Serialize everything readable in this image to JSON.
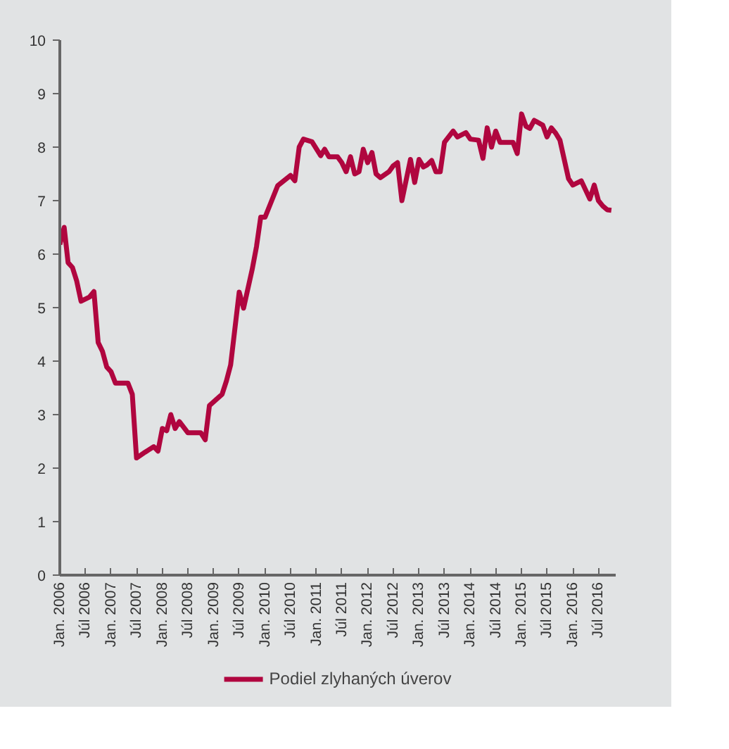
{
  "chart_data": {
    "type": "line",
    "x": [
      "2006-01",
      "2006-02",
      "2006-03",
      "2006-04",
      "2006-05",
      "2006-06",
      "2006-08",
      "2006-09",
      "2006-10",
      "2006-11",
      "2006-12",
      "2007-01",
      "2007-02",
      "2007-05",
      "2007-06",
      "2007-07",
      "2007-09",
      "2007-10",
      "2007-11",
      "2007-12",
      "2008-01",
      "2008-02",
      "2008-03",
      "2008-04",
      "2008-05",
      "2008-07",
      "2008-10",
      "2008-11",
      "2008-12",
      "2009-03",
      "2009-04",
      "2009-05",
      "2009-07",
      "2009-08",
      "2009-10",
      "2009-11",
      "2009-12",
      "2010-01",
      "2010-04",
      "2010-07",
      "2010-08",
      "2010-09",
      "2010-10",
      "2010-12",
      "2011-02",
      "2011-03",
      "2011-04",
      "2011-06",
      "2011-07",
      "2011-08",
      "2011-09",
      "2011-10",
      "2011-11",
      "2011-12",
      "2012-01",
      "2012-02",
      "2012-03",
      "2012-04",
      "2012-06",
      "2012-07",
      "2012-08",
      "2012-09",
      "2012-11",
      "2012-12",
      "2013-01",
      "2013-02",
      "2013-03",
      "2013-04",
      "2013-05",
      "2013-06",
      "2013-07",
      "2013-09",
      "2013-10",
      "2013-12",
      "2014-01",
      "2014-03",
      "2014-04",
      "2014-05",
      "2014-06",
      "2014-07",
      "2014-08",
      "2014-11",
      "2014-12",
      "2015-01",
      "2015-02",
      "2015-03",
      "2015-04",
      "2015-06",
      "2015-07",
      "2015-08",
      "2015-09",
      "2015-10",
      "2015-12",
      "2016-01",
      "2016-03",
      "2016-05",
      "2016-06",
      "2016-07",
      "2016-08",
      "2016-09",
      "2016-10"
    ],
    "series": [
      {
        "name": "Podiel zlyhaných úverov",
        "color": "#b0063f",
        "values": [
          6.18,
          6.5,
          5.84,
          5.75,
          5.5,
          5.12,
          5.2,
          5.3,
          4.35,
          4.18,
          3.89,
          3.8,
          3.59,
          3.59,
          3.38,
          2.19,
          2.3,
          2.35,
          2.4,
          2.32,
          2.74,
          2.7,
          3.0,
          2.74,
          2.87,
          2.66,
          2.66,
          2.53,
          3.17,
          3.38,
          3.63,
          3.93,
          5.29,
          4.99,
          5.71,
          6.14,
          6.69,
          6.69,
          7.28,
          7.47,
          7.37,
          8.0,
          8.15,
          8.1,
          7.84,
          7.96,
          7.82,
          7.82,
          7.71,
          7.54,
          7.82,
          7.5,
          7.54,
          7.96,
          7.71,
          7.9,
          7.5,
          7.43,
          7.54,
          7.65,
          7.71,
          7.0,
          7.77,
          7.34,
          7.77,
          7.63,
          7.67,
          7.75,
          7.54,
          7.54,
          8.09,
          8.3,
          8.19,
          8.27,
          8.15,
          8.13,
          7.79,
          8.36,
          8.0,
          8.3,
          8.09,
          8.09,
          7.88,
          8.62,
          8.39,
          8.35,
          8.5,
          8.41,
          8.19,
          8.36,
          8.26,
          8.13,
          7.41,
          7.29,
          7.37,
          7.03,
          7.29,
          7.0,
          6.9,
          6.83,
          6.82
        ]
      }
    ],
    "xlim": [
      "2006-01",
      "2016-11"
    ],
    "xticks": [
      {
        "value": "2006-01",
        "label": "Jan. 2006"
      },
      {
        "value": "2006-07",
        "label": "Júl 2006"
      },
      {
        "value": "2007-01",
        "label": "Jan. 2007"
      },
      {
        "value": "2007-07",
        "label": "Júl 2007"
      },
      {
        "value": "2008-01",
        "label": "Jan. 2008"
      },
      {
        "value": "2008-07",
        "label": "Júl 2008"
      },
      {
        "value": "2009-01",
        "label": "Jan. 2009"
      },
      {
        "value": "2009-07",
        "label": "Júl 2009"
      },
      {
        "value": "2010-01",
        "label": "Jan. 2010"
      },
      {
        "value": "2010-07",
        "label": "Júl 2010"
      },
      {
        "value": "2011-01",
        "label": "Jan. 2011"
      },
      {
        "value": "2011-07",
        "label": "Júl 2011"
      },
      {
        "value": "2012-01",
        "label": "Jan. 2012"
      },
      {
        "value": "2012-07",
        "label": "Júl 2012"
      },
      {
        "value": "2013-01",
        "label": "Jan. 2013"
      },
      {
        "value": "2013-07",
        "label": "Júl 2013"
      },
      {
        "value": "2014-01",
        "label": "Jan. 2014"
      },
      {
        "value": "2014-07",
        "label": "Júl 2014"
      },
      {
        "value": "2015-01",
        "label": "Jan. 2015"
      },
      {
        "value": "2015-07",
        "label": "Júl 2015"
      },
      {
        "value": "2016-01",
        "label": "Jan. 2016"
      },
      {
        "value": "2016-07",
        "label": "Júl 2016"
      }
    ],
    "ylim": [
      0,
      10
    ],
    "yticks": [
      0,
      1,
      2,
      3,
      4,
      5,
      6,
      7,
      8,
      9,
      10
    ],
    "grid": false,
    "legend": "bottom",
    "marker": "none",
    "line_style": "solid"
  }
}
